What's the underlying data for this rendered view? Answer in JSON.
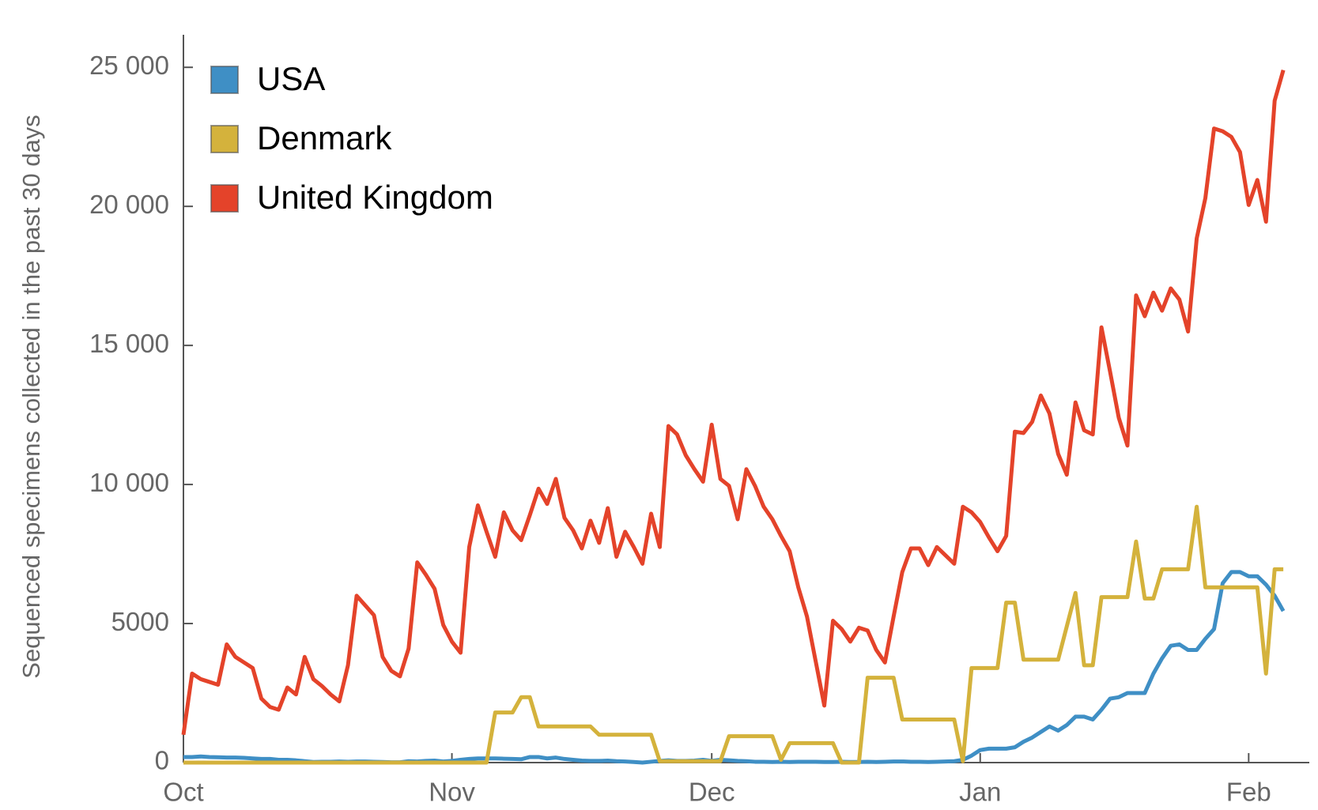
{
  "chart_data": {
    "type": "line",
    "ylabel": "Sequenced specimens collected in the past 30 days",
    "x": [
      0,
      1,
      2,
      3,
      4,
      5,
      6,
      7,
      8,
      9,
      10,
      11,
      12,
      13,
      14,
      15,
      16,
      17,
      18,
      19,
      20,
      21,
      22,
      23,
      24,
      25,
      26,
      27,
      28,
      29,
      30,
      31,
      32,
      33,
      34,
      35,
      36,
      37,
      38,
      39,
      40,
      41,
      42,
      43,
      44,
      45,
      46,
      47,
      48,
      49,
      50,
      51,
      52,
      53,
      54,
      55,
      56,
      57,
      58,
      59,
      60,
      61,
      62,
      63,
      64,
      65,
      66,
      67,
      68,
      69,
      70,
      71,
      72,
      73,
      74,
      75,
      76,
      77,
      78,
      79,
      80,
      81,
      82,
      83,
      84,
      85,
      86,
      87,
      88,
      89,
      90,
      91,
      92,
      93,
      94,
      95,
      96,
      97,
      98,
      99,
      100,
      101,
      102,
      103,
      104,
      105,
      106,
      107,
      108,
      109,
      110,
      111,
      112,
      113,
      114,
      115,
      116,
      117,
      118,
      119,
      120,
      121,
      122,
      123,
      124,
      125,
      126,
      127
    ],
    "xlim": [
      0,
      130
    ],
    "xticks": [
      {
        "value": 0,
        "label": "Oct"
      },
      {
        "value": 31,
        "label": "Nov"
      },
      {
        "value": 61,
        "label": "Dec"
      },
      {
        "value": 92,
        "label": "Jan"
      },
      {
        "value": 123,
        "label": "Feb"
      }
    ],
    "ylim": [
      0,
      26000
    ],
    "yticks": [
      0,
      5000,
      {
        "value": 10000,
        "label": "10 000"
      },
      {
        "value": 15000,
        "label": "15 000"
      },
      {
        "value": 20000,
        "label": "20 000"
      },
      {
        "value": 25000,
        "label": "25 000"
      }
    ],
    "legend": "top-left",
    "series": [
      {
        "name": "USA",
        "color": "#3f8fc5",
        "values": [
          200,
          200,
          220,
          200,
          190,
          180,
          180,
          170,
          150,
          130,
          130,
          100,
          100,
          80,
          50,
          20,
          30,
          30,
          40,
          30,
          40,
          40,
          30,
          20,
          10,
          10,
          50,
          40,
          60,
          70,
          40,
          60,
          100,
          130,
          150,
          150,
          150,
          140,
          130,
          120,
          200,
          200,
          150,
          180,
          130,
          100,
          70,
          60,
          60,
          70,
          50,
          40,
          20,
          0,
          30,
          60,
          80,
          60,
          60,
          70,
          100,
          60,
          100,
          80,
          60,
          50,
          30,
          30,
          20,
          30,
          20,
          30,
          30,
          30,
          20,
          20,
          30,
          20,
          20,
          30,
          20,
          30,
          40,
          40,
          30,
          30,
          20,
          30,
          40,
          50,
          100,
          250,
          450,
          500,
          500,
          500,
          550,
          750,
          900,
          1100,
          1300,
          1150,
          1350,
          1650,
          1650,
          1550,
          1900,
          2300,
          2350,
          2500,
          2500,
          2500,
          3200,
          3750,
          4200,
          4250,
          4050,
          4050,
          4450,
          4800,
          6450,
          6850,
          6850,
          6700,
          6700,
          6400,
          6000,
          5450
        ]
      },
      {
        "name": "Denmark",
        "color": "#d4b23c",
        "values": [
          0,
          0,
          0,
          0,
          0,
          0,
          0,
          0,
          0,
          0,
          0,
          0,
          0,
          0,
          0,
          0,
          0,
          0,
          0,
          0,
          0,
          0,
          0,
          0,
          0,
          0,
          0,
          0,
          0,
          0,
          0,
          0,
          0,
          0,
          0,
          0,
          1800,
          1800,
          1800,
          2350,
          2350,
          1300,
          1300,
          1300,
          1300,
          1300,
          1300,
          1300,
          1000,
          1000,
          1000,
          1000,
          1000,
          1000,
          1000,
          50,
          50,
          50,
          50,
          50,
          50,
          50,
          50,
          950,
          950,
          950,
          950,
          950,
          950,
          100,
          700,
          700,
          700,
          700,
          700,
          700,
          0,
          0,
          0,
          3050,
          3050,
          3050,
          3050,
          1550,
          1550,
          1550,
          1550,
          1550,
          1550,
          1550,
          50,
          3400,
          3400,
          3400,
          3400,
          5750,
          5750,
          3700,
          3700,
          3700,
          3700,
          3700,
          4900,
          6100,
          3500,
          3500,
          5950,
          5950,
          5950,
          5950,
          7950,
          5900,
          5900,
          6950,
          6950,
          6950,
          6950,
          9200,
          6300,
          6300,
          6300,
          6300,
          6300,
          6300,
          6300,
          3200,
          6950,
          6950
        ]
      },
      {
        "name": "United Kingdom",
        "color": "#e4432a",
        "values": [
          1000,
          3200,
          3000,
          2900,
          2800,
          4250,
          3800,
          3600,
          3400,
          2300,
          2000,
          1900,
          2700,
          2450,
          3800,
          3000,
          2750,
          2450,
          2200,
          3500,
          6000,
          5650,
          5300,
          3800,
          3300,
          3100,
          4100,
          7200,
          6750,
          6250,
          4950,
          4350,
          3950,
          7750,
          9250,
          8300,
          7400,
          9000,
          8350,
          8000,
          8900,
          9850,
          9300,
          10200,
          8800,
          8350,
          7700,
          8700,
          7900,
          9150,
          7400,
          8300,
          7750,
          7150,
          8950,
          7750,
          12100,
          11800,
          11050,
          10550,
          10100,
          12150,
          10200,
          9950,
          8750,
          10550,
          9950,
          9200,
          8750,
          8150,
          7600,
          6300,
          5250,
          3650,
          2050,
          5100,
          4800,
          4350,
          4850,
          4750,
          4050,
          3600,
          5250,
          6850,
          7700,
          7700,
          7100,
          7750,
          7450,
          7150,
          9200,
          9000,
          8650,
          8100,
          7600,
          8150,
          11900,
          11850,
          12250,
          13200,
          12550,
          11100,
          10350,
          12950,
          11950,
          11800,
          15650,
          14050,
          12400,
          11400,
          16800,
          16050,
          16900,
          16250,
          17050,
          16650,
          15500,
          18850,
          20300,
          22800,
          22700,
          22500,
          21950,
          20050,
          20950,
          19450,
          23800,
          24900
        ]
      }
    ]
  }
}
